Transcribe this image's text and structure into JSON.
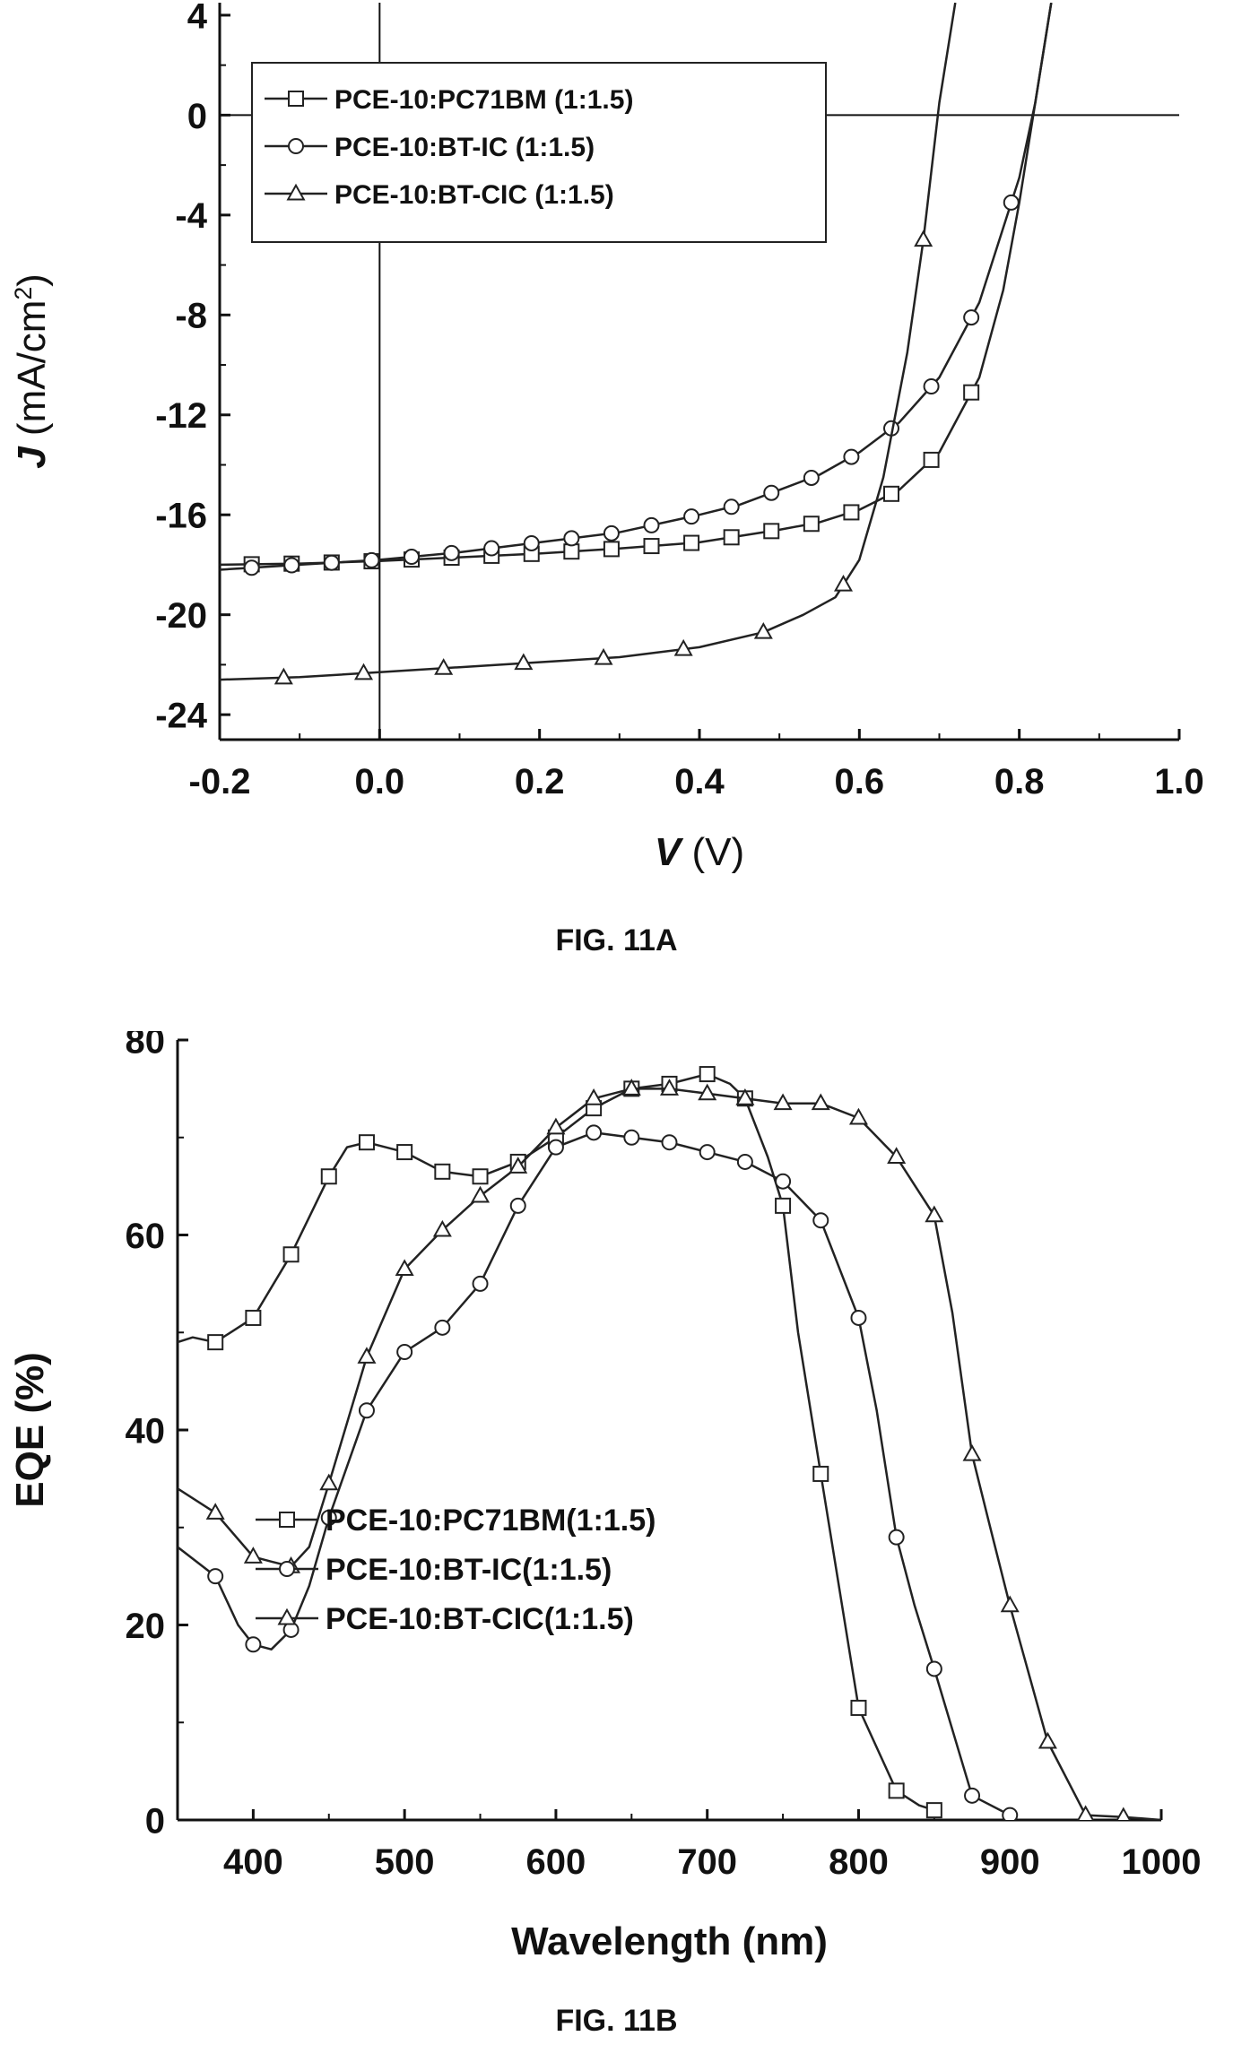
{
  "chart_data": [
    {
      "type": "line",
      "figure_label": "FIG. 11A",
      "xlabel_italic": "V",
      "xlabel_rest": " (V)",
      "ylabel_italic": "J",
      "ylabel_rest": " (mA/cm",
      "ylabel_sup": "2",
      "ylabel_close": ")",
      "xlim": [
        -0.2,
        1.0
      ],
      "ylim": [
        -25,
        4.5
      ],
      "xticks": [
        -0.2,
        0.0,
        0.2,
        0.4,
        0.6,
        0.8,
        1.0
      ],
      "xtick_labels": [
        "-0.2",
        "0.0",
        "0.2",
        "0.4",
        "0.6",
        "0.8",
        "1.0"
      ],
      "yticks": [
        4,
        0,
        -4,
        -8,
        -12,
        -16,
        -20,
        -24
      ],
      "ytick_labels": [
        "4",
        "0",
        "-4",
        "-8",
        "-12",
        "-16",
        "-20",
        "-24"
      ],
      "reference_lines": {
        "x": 0,
        "y": 0
      },
      "grid": false,
      "legend_position": "top-left",
      "series": [
        {
          "name": "PCE-10:PC71BM (1:1.5)",
          "marker": "square",
          "x": [
            -0.2,
            -0.1,
            0.0,
            0.1,
            0.2,
            0.3,
            0.4,
            0.5,
            0.55,
            0.6,
            0.65,
            0.7,
            0.75,
            0.78,
            0.8,
            0.82,
            0.84
          ],
          "y": [
            -18.0,
            -17.95,
            -17.85,
            -17.7,
            -17.55,
            -17.35,
            -17.1,
            -16.6,
            -16.3,
            -15.8,
            -15.0,
            -13.5,
            -10.5,
            -7.0,
            -3.5,
            0.5,
            4.5
          ],
          "marker_x": [
            -0.16,
            -0.11,
            -0.06,
            -0.01,
            0.04,
            0.09,
            0.14,
            0.19,
            0.24,
            0.29,
            0.34,
            0.39,
            0.44,
            0.49,
            0.54,
            0.59,
            0.64,
            0.69,
            0.74
          ]
        },
        {
          "name": "PCE-10:BT-IC (1:1.5)",
          "marker": "circle",
          "x": [
            -0.2,
            -0.1,
            0.0,
            0.1,
            0.2,
            0.3,
            0.4,
            0.45,
            0.5,
            0.55,
            0.6,
            0.65,
            0.7,
            0.75,
            0.8,
            0.82,
            0.84
          ],
          "y": [
            -18.2,
            -18.0,
            -17.8,
            -17.5,
            -17.1,
            -16.7,
            -16.0,
            -15.6,
            -15.0,
            -14.4,
            -13.5,
            -12.3,
            -10.5,
            -7.5,
            -2.5,
            0.5,
            4.5
          ],
          "marker_x": [
            -0.16,
            -0.11,
            -0.06,
            -0.01,
            0.04,
            0.09,
            0.14,
            0.19,
            0.24,
            0.29,
            0.34,
            0.39,
            0.44,
            0.49,
            0.54,
            0.59,
            0.64,
            0.69,
            0.74,
            0.79
          ]
        },
        {
          "name": "PCE-10:BT-CIC (1:1.5)",
          "marker": "triangle",
          "x": [
            -0.2,
            -0.1,
            0.0,
            0.1,
            0.2,
            0.3,
            0.4,
            0.48,
            0.53,
            0.57,
            0.6,
            0.63,
            0.66,
            0.68,
            0.7,
            0.72
          ],
          "y": [
            -22.6,
            -22.5,
            -22.3,
            -22.1,
            -21.9,
            -21.7,
            -21.3,
            -20.7,
            -20.0,
            -19.3,
            -17.8,
            -14.5,
            -9.5,
            -5.0,
            0.5,
            4.5
          ],
          "marker_x": [
            -0.12,
            -0.02,
            0.08,
            0.18,
            0.28,
            0.38,
            0.48,
            0.58,
            0.68
          ]
        }
      ]
    },
    {
      "type": "line",
      "figure_label": "FIG. 11B",
      "xlabel": "Wavelength (nm)",
      "ylabel": "EQE (%)",
      "xlim": [
        350,
        1000
      ],
      "ylim": [
        0,
        80
      ],
      "xticks": [
        400,
        500,
        600,
        700,
        800,
        900,
        1000
      ],
      "xtick_labels": [
        "400",
        "500",
        "600",
        "700",
        "800",
        "900",
        "1000"
      ],
      "yticks": [
        0,
        20,
        40,
        60,
        80
      ],
      "ytick_labels": [
        "0",
        "20",
        "40",
        "60",
        "80"
      ],
      "grid": false,
      "legend_position": "bottom-center",
      "series": [
        {
          "name": "PCE-10:PC71BM(1:1.5)",
          "marker": "square",
          "x": [
            350,
            360,
            375,
            400,
            425,
            450,
            462,
            475,
            500,
            525,
            550,
            575,
            600,
            625,
            650,
            675,
            700,
            715,
            725,
            740,
            750,
            760,
            775,
            800,
            825,
            840,
            850
          ],
          "y": [
            49,
            49.5,
            49,
            51.5,
            58,
            66,
            69,
            69.5,
            68.5,
            66.5,
            66,
            67.5,
            70,
            73,
            75,
            75.5,
            76.5,
            75.5,
            74,
            68,
            63,
            50,
            35.5,
            11.5,
            3,
            1.5,
            1
          ],
          "marker_x": [
            375,
            400,
            425,
            450,
            475,
            500,
            525,
            550,
            575,
            600,
            625,
            650,
            675,
            700,
            725,
            750,
            775,
            800,
            825,
            850
          ]
        },
        {
          "name": "PCE-10:BT-IC(1:1.5)",
          "marker": "circle",
          "x": [
            350,
            375,
            390,
            400,
            412,
            425,
            437,
            450,
            475,
            500,
            525,
            550,
            575,
            600,
            625,
            650,
            675,
            700,
            725,
            750,
            775,
            800,
            812,
            825,
            837,
            850,
            875,
            900
          ],
          "y": [
            28,
            25,
            20,
            18,
            17.5,
            19.5,
            24,
            31,
            42,
            48,
            50.5,
            55,
            63,
            69,
            70.5,
            70,
            69.5,
            68.5,
            67.5,
            65.5,
            61.5,
            51.5,
            42,
            29,
            22,
            15.5,
            2.5,
            0.5
          ],
          "marker_x": [
            375,
            400,
            425,
            450,
            475,
            500,
            525,
            550,
            575,
            600,
            625,
            650,
            675,
            700,
            725,
            750,
            775,
            800,
            825,
            850,
            875,
            900
          ]
        },
        {
          "name": "PCE-10:BT-CIC(1:1.5)",
          "marker": "triangle",
          "x": [
            350,
            375,
            400,
            412,
            425,
            437,
            450,
            475,
            500,
            525,
            550,
            575,
            600,
            625,
            650,
            675,
            700,
            725,
            750,
            775,
            800,
            825,
            850,
            862,
            875,
            887,
            900,
            925,
            950,
            975,
            1000
          ],
          "y": [
            34,
            31.5,
            27,
            26.5,
            26,
            28,
            34.5,
            47.5,
            56.5,
            60.5,
            64,
            67,
            71,
            74,
            75,
            75,
            74.5,
            74,
            73.5,
            73.5,
            72,
            68,
            62,
            52,
            37.5,
            30,
            22,
            8,
            0.5,
            0.3,
            0
          ],
          "marker_x": [
            375,
            400,
            425,
            450,
            475,
            500,
            525,
            550,
            575,
            600,
            625,
            650,
            675,
            700,
            725,
            750,
            775,
            800,
            825,
            850,
            875,
            900,
            925,
            950,
            975
          ]
        }
      ]
    }
  ]
}
